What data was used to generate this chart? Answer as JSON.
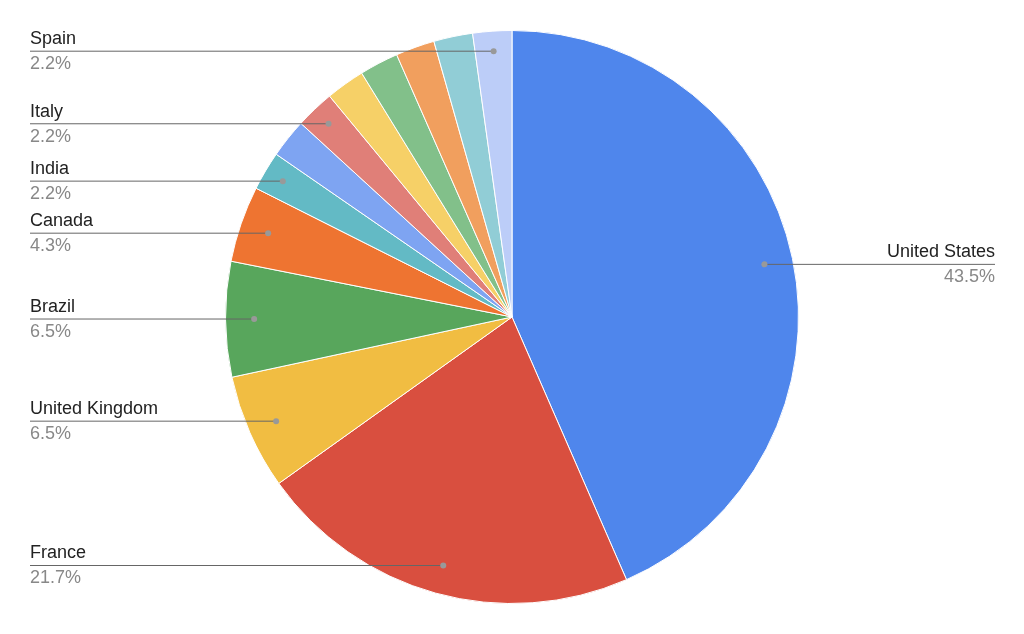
{
  "chart_data": {
    "type": "pie",
    "categories": [
      "United States",
      "France",
      "United Kingdom",
      "Brazil",
      "Canada",
      "India",
      null,
      "Italy",
      null,
      null,
      null,
      null,
      "Spain"
    ],
    "values": [
      43.5,
      21.7,
      6.5,
      6.5,
      4.3,
      2.2,
      2.2,
      2.2,
      2.2,
      2.2,
      2.2,
      2.2,
      2.2
    ],
    "value_labels": [
      "43.5%",
      "21.7%",
      "6.5%",
      "6.5%",
      "4.3%",
      "2.2%",
      null,
      "2.2%",
      null,
      null,
      null,
      null,
      "2.2%"
    ],
    "colors": [
      "#4f86ec",
      "#d94f3f",
      "#f1bd42",
      "#58a65c",
      "#ee7431",
      "#63bac5",
      "#7ea4f2",
      "#e07f78",
      "#f6d067",
      "#82c08a",
      "#f19f5e",
      "#91cdd6",
      "#bccdf8"
    ],
    "legend": false
  }
}
